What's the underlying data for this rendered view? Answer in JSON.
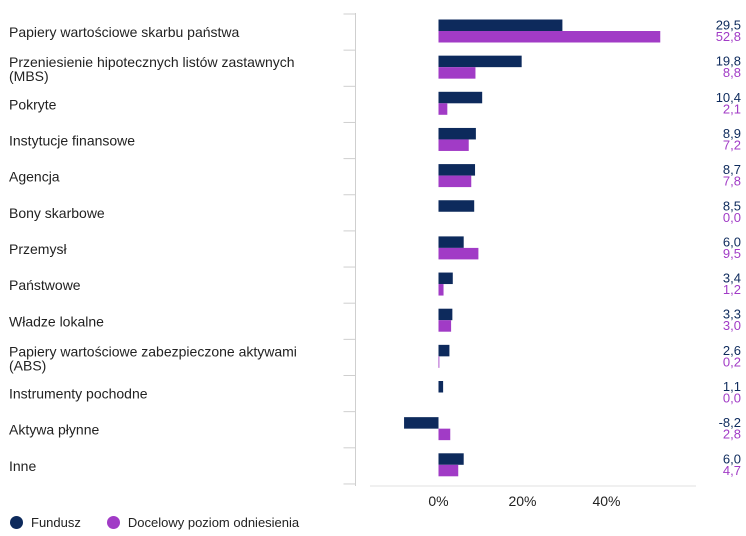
{
  "chart_data": {
    "type": "bar",
    "orientation": "horizontal",
    "categories": [
      "Papiery wartościowe skarbu państwa",
      "Przeniesienie hipotecznych listów zastawnych (MBS)",
      "Pokryte",
      "Instytucje finansowe",
      "Agencja",
      "Bony skarbowe",
      "Przemysł",
      "Państwowe",
      "Władze lokalne",
      "Papiery wartościowe zabezpieczone aktywami (ABS)",
      "Instrumenty pochodne",
      "Aktywa płynne",
      "Inne"
    ],
    "series": [
      {
        "name": "Fundusz",
        "color": "#0d2a5c",
        "values": [
          29.5,
          19.8,
          10.4,
          8.9,
          8.7,
          8.5,
          6.0,
          3.4,
          3.3,
          2.6,
          1.1,
          -8.2,
          6.0
        ],
        "labels": [
          "29,5",
          "19,8",
          "10,4",
          "8,9",
          "8,7",
          "8,5",
          "6,0",
          "3,4",
          "3,3",
          "2,6",
          "1,1",
          "-8,2",
          "6,0"
        ]
      },
      {
        "name": "Docelowy poziom odniesienia",
        "color": "#a13bc6",
        "values": [
          52.8,
          8.8,
          2.1,
          7.2,
          7.8,
          0.0,
          9.5,
          1.2,
          3.0,
          0.2,
          0.0,
          2.8,
          4.7
        ],
        "labels": [
          "52,8",
          "8,8",
          "2,1",
          "7,2",
          "7,8",
          "0,0",
          "9,5",
          "1,2",
          "3,0",
          "0,2",
          "0,0",
          "2,8",
          "4,7"
        ]
      }
    ],
    "xticks": [
      "0%",
      "20%",
      "40%"
    ],
    "xtick_values": [
      0,
      20,
      40
    ],
    "xlim": [
      -15,
      55
    ],
    "title": "",
    "xlabel": "",
    "ylabel": "",
    "grid": false,
    "legend_position": "bottom-left"
  }
}
